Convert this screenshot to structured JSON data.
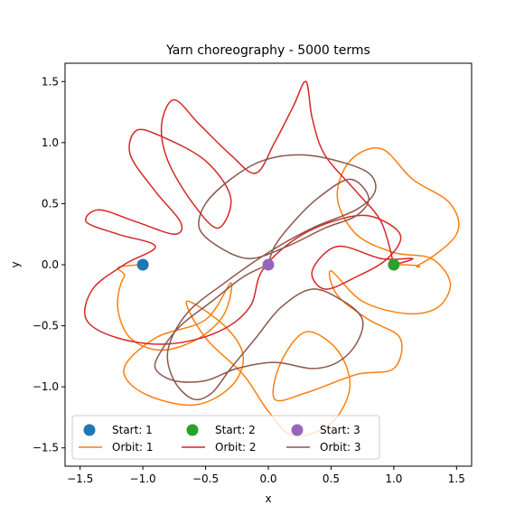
{
  "chart_data": {
    "type": "line",
    "title": "Yarn choreography - 5000 terms",
    "xlabel": "x",
    "ylabel": "y",
    "xlim": [
      -1.62,
      1.62
    ],
    "ylim": [
      -1.65,
      1.65
    ],
    "xticks": [
      -1.5,
      -1.0,
      -0.5,
      0.0,
      0.5,
      1.0,
      1.5
    ],
    "xtick_labels": [
      "−1.5",
      "−1.0",
      "−0.5",
      "0.0",
      "0.5",
      "1.0",
      "1.5"
    ],
    "yticks": [
      -1.5,
      -1.0,
      -0.5,
      0.0,
      0.5,
      1.0,
      1.5
    ],
    "ytick_labels": [
      "−1.5",
      "−1.0",
      "−0.5",
      "0.0",
      "0.5",
      "1.0",
      "1.5"
    ],
    "grid": false,
    "legend_placement": "lower-left",
    "start_points": [
      {
        "name": "Start: 1",
        "x": -1.0,
        "y": 0.0,
        "color": "#1f77b4"
      },
      {
        "name": "Start: 2",
        "x": 1.0,
        "y": 0.0,
        "color": "#2ca02c"
      },
      {
        "name": "Start: 3",
        "x": 0.0,
        "y": 0.0,
        "color": "#9467bd"
      }
    ],
    "orbits": [
      {
        "name": "Orbit: 1",
        "color": "#ff7f0e",
        "x": [
          -1.0,
          -1.15,
          -1.2,
          -1.1,
          -0.85,
          -0.55,
          -0.35,
          -0.3,
          -0.5,
          -0.9,
          -1.15,
          -1.0,
          -0.6,
          -0.3,
          -0.2,
          -0.35,
          -0.65,
          -0.5,
          -0.2,
          0.0,
          0.2,
          0.5,
          0.65,
          0.55,
          0.3,
          0.1,
          0.05,
          0.3,
          0.7,
          1.0,
          1.05,
          0.8,
          0.55,
          0.5,
          0.75,
          1.1,
          1.35,
          1.45,
          1.3,
          1.0,
          0.7,
          0.55,
          0.65,
          0.9,
          1.15,
          1.45,
          1.5,
          1.2,
          1.0
        ],
        "y": [
          0.0,
          -0.1,
          -0.35,
          -0.6,
          -0.7,
          -0.6,
          -0.4,
          -0.15,
          -0.45,
          -0.6,
          -0.85,
          -1.05,
          -1.15,
          -1.0,
          -0.75,
          -0.5,
          -0.3,
          -0.6,
          -0.9,
          -1.2,
          -1.4,
          -1.3,
          -1.0,
          -0.7,
          -0.55,
          -0.8,
          -1.1,
          -1.05,
          -0.9,
          -0.85,
          -0.6,
          -0.45,
          -0.25,
          -0.05,
          -0.3,
          -0.4,
          -0.35,
          -0.15,
          0.05,
          0.1,
          0.25,
          0.55,
          0.85,
          0.95,
          0.7,
          0.5,
          0.25,
          0.0,
          0.0
        ]
      },
      {
        "name": "Orbit: 2",
        "color": "#d62728",
        "x": [
          1.0,
          0.9,
          0.7,
          0.45,
          0.35,
          0.3,
          0.2,
          0.05,
          -0.1,
          -0.3,
          -0.55,
          -0.75,
          -0.85,
          -0.8,
          -0.6,
          -0.4,
          -0.3,
          -0.5,
          -0.85,
          -1.05,
          -1.1,
          -0.9,
          -0.7,
          -0.75,
          -1.05,
          -1.35,
          -1.45,
          -1.2,
          -0.9,
          -1.15,
          -1.4,
          -1.45,
          -1.2,
          -0.8,
          -0.4,
          -0.15,
          -0.05,
          0.2,
          0.5,
          0.8,
          1.05,
          0.95,
          0.7,
          0.45,
          0.35,
          0.55,
          0.9,
          1.15,
          1.0
        ],
        "y": [
          0.0,
          0.35,
          0.6,
          0.9,
          1.2,
          1.5,
          1.3,
          1.0,
          0.75,
          0.9,
          1.15,
          1.35,
          1.15,
          0.85,
          0.5,
          0.3,
          0.55,
          0.85,
          1.05,
          1.1,
          0.9,
          0.6,
          0.35,
          0.25,
          0.35,
          0.45,
          0.35,
          0.25,
          0.15,
          0.0,
          -0.2,
          -0.45,
          -0.6,
          -0.65,
          -0.55,
          -0.35,
          -0.05,
          0.2,
          0.35,
          0.4,
          0.25,
          0.05,
          -0.1,
          -0.2,
          -0.05,
          0.15,
          0.05,
          0.05,
          0.0
        ]
      },
      {
        "name": "Orbit: 3",
        "color": "#8c564b",
        "x": [
          0.0,
          -0.2,
          -0.45,
          -0.7,
          -0.85,
          -0.9,
          -0.75,
          -0.5,
          -0.25,
          0.05,
          0.35,
          0.55,
          0.7,
          0.75,
          0.6,
          0.35,
          0.1,
          -0.1,
          -0.3,
          -0.45,
          -0.6,
          -0.75,
          -0.8,
          -0.65,
          -0.35,
          0.0,
          0.35,
          0.7,
          0.85,
          0.8,
          0.55,
          0.25,
          -0.05,
          -0.3,
          -0.5,
          -0.55,
          -0.4,
          -0.15,
          0.15,
          0.45,
          0.7,
          0.8,
          0.65,
          0.4,
          0.2,
          0.05,
          0.0
        ],
        "y": [
          0.0,
          -0.1,
          -0.3,
          -0.5,
          -0.7,
          -0.85,
          -0.95,
          -0.95,
          -0.85,
          -0.8,
          -0.85,
          -0.8,
          -0.65,
          -0.45,
          -0.3,
          -0.2,
          -0.35,
          -0.6,
          -0.85,
          -1.05,
          -1.1,
          -0.95,
          -0.7,
          -0.4,
          -0.15,
          0.1,
          0.3,
          0.45,
          0.6,
          0.75,
          0.85,
          0.9,
          0.85,
          0.7,
          0.5,
          0.3,
          0.15,
          0.05,
          0.15,
          0.3,
          0.4,
          0.55,
          0.7,
          0.55,
          0.35,
          0.15,
          0.0
        ]
      }
    ]
  }
}
